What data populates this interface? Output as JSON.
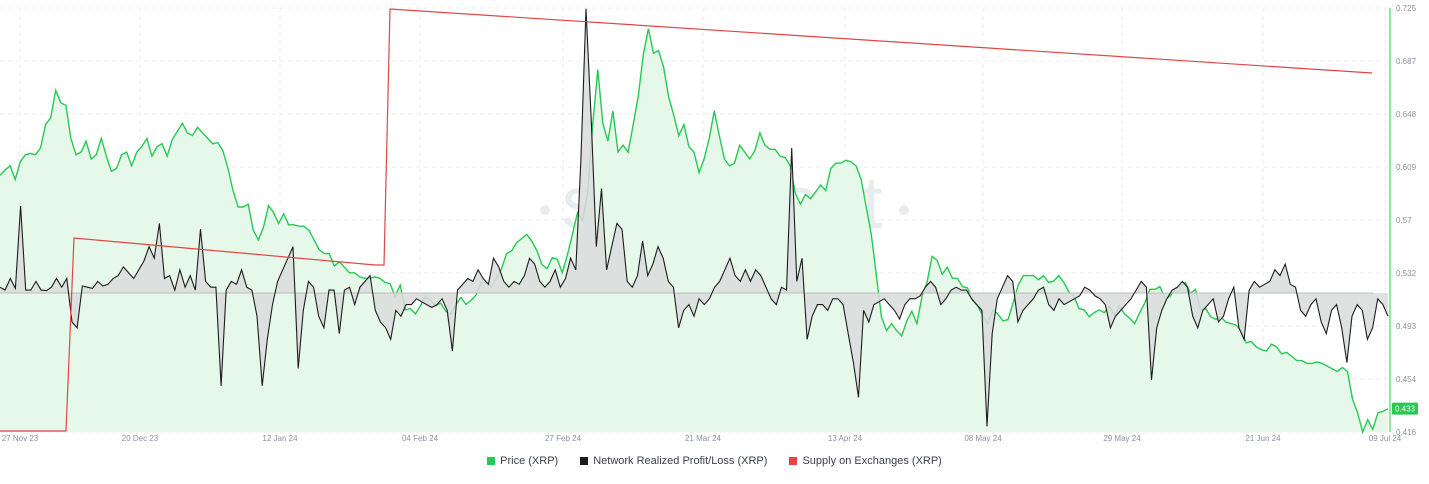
{
  "watermark": "santiment",
  "colors": {
    "price": "#26c953",
    "price_fill": "#e6f8ea",
    "profit_loss": "#1c1c1c",
    "profit_loss_fill": "#d9dcdc",
    "supply": "#e04646",
    "grid": "#ececec",
    "axis_text": "#8a919f"
  },
  "legend": [
    {
      "label": "Price (XRP)",
      "color": "#26c953"
    },
    {
      "label": "Network Realized Profit/Loss (XRP)",
      "color": "#1c1c1c"
    },
    {
      "label": "Supply on Exchanges (XRP)",
      "color": "#e04646"
    }
  ],
  "chart_data": {
    "type": "line",
    "x_tick_labels": [
      "27 Nov 23",
      "20 Dec 23",
      "12 Jan 24",
      "04 Feb 24",
      "27 Feb 24",
      "21 Mar 24",
      "13 Apr 24",
      "08 May 24",
      "29 May 24",
      "21 Jun 24",
      "09 Jul 24"
    ],
    "y_tick_labels": [
      "0.725",
      "0.687",
      "0.648",
      "0.609",
      "0.57",
      "0.532",
      "0.493",
      "0.454",
      "0.416"
    ],
    "ylim": [
      0.416,
      0.725
    ],
    "current_price_label": "0.433",
    "grid": true,
    "legend_position": "bottom-center",
    "series": [
      {
        "name": "Price (XRP)",
        "axis": "right",
        "values": [
          0.603,
          0.607,
          0.61,
          0.6,
          0.613,
          0.618,
          0.619,
          0.618,
          0.623,
          0.64,
          0.645,
          0.665,
          0.656,
          0.654,
          0.63,
          0.618,
          0.62,
          0.628,
          0.615,
          0.618,
          0.63,
          0.617,
          0.606,
          0.608,
          0.618,
          0.62,
          0.61,
          0.62,
          0.624,
          0.63,
          0.617,
          0.624,
          0.626,
          0.617,
          0.629,
          0.635,
          0.641,
          0.634,
          0.632,
          0.638,
          0.634,
          0.63,
          0.626,
          0.627,
          0.621,
          0.608,
          0.592,
          0.58,
          0.58,
          0.582,
          0.563,
          0.556,
          0.565,
          0.581,
          0.576,
          0.568,
          0.575,
          0.567,
          0.567,
          0.566,
          0.566,
          0.563,
          0.556,
          0.549,
          0.546,
          0.546,
          0.537,
          0.54,
          0.536,
          0.532,
          0.532,
          0.529,
          0.528,
          0.528,
          0.529,
          0.528,
          0.525,
          0.524,
          0.515,
          0.523,
          0.505,
          0.506,
          0.502,
          0.508,
          0.515,
          0.512,
          0.508,
          0.51,
          0.504,
          0.502,
          0.509,
          0.514,
          0.509,
          0.512,
          0.516,
          0.525,
          0.525,
          0.522,
          0.528,
          0.535,
          0.546,
          0.548,
          0.554,
          0.557,
          0.56,
          0.555,
          0.548,
          0.538,
          0.535,
          0.543,
          0.542,
          0.532,
          0.545,
          0.56,
          0.576,
          0.57,
          0.59,
          0.64,
          0.68,
          0.641,
          0.628,
          0.65,
          0.62,
          0.625,
          0.62,
          0.64,
          0.661,
          0.691,
          0.71,
          0.692,
          0.694,
          0.682,
          0.66,
          0.647,
          0.632,
          0.64,
          0.624,
          0.62,
          0.605,
          0.615,
          0.63,
          0.65,
          0.632,
          0.615,
          0.61,
          0.612,
          0.625,
          0.62,
          0.615,
          0.621,
          0.634,
          0.625,
          0.622,
          0.622,
          0.617,
          0.616,
          0.61,
          0.59,
          0.582,
          0.589,
          0.586,
          0.591,
          0.596,
          0.592,
          0.608,
          0.612,
          0.612,
          0.614,
          0.613,
          0.61,
          0.6,
          0.58,
          0.56,
          0.53,
          0.5,
          0.49,
          0.495,
          0.49,
          0.486,
          0.497,
          0.504,
          0.495,
          0.515,
          0.525,
          0.544,
          0.541,
          0.531,
          0.536,
          0.528,
          0.528,
          0.522,
          0.521,
          0.512,
          0.508,
          0.501,
          0.495,
          0.505,
          0.502,
          0.497,
          0.498,
          0.51,
          0.523,
          0.53,
          0.53,
          0.53,
          0.527,
          0.53,
          0.525,
          0.526,
          0.53,
          0.525,
          0.518,
          0.515,
          0.506,
          0.505,
          0.5,
          0.503,
          0.505,
          0.503,
          0.508,
          0.501,
          0.508,
          0.502,
          0.499,
          0.495,
          0.503,
          0.51,
          0.52,
          0.52,
          0.522,
          0.513,
          0.515,
          0.52,
          0.522,
          0.525,
          0.517,
          0.52,
          0.505,
          0.506,
          0.5,
          0.498,
          0.5,
          0.496,
          0.495,
          0.494,
          0.49,
          0.481,
          0.482,
          0.478,
          0.476,
          0.475,
          0.48,
          0.478,
          0.473,
          0.474,
          0.471,
          0.468,
          0.468,
          0.466,
          0.466,
          0.467,
          0.466,
          0.464,
          0.462,
          0.46,
          0.463,
          0.46,
          0.44,
          0.43,
          0.416,
          0.425,
          0.418,
          0.43,
          0.431,
          0.433
        ],
        "note": "price fill area to bottom"
      },
      {
        "name": "Network Realized Profit/Loss (XRP)",
        "axis": "left",
        "values": [
          10,
          5,
          25,
          8,
          150,
          5,
          5,
          20,
          5,
          4,
          10,
          25,
          10,
          25,
          -50,
          -60,
          12,
          10,
          8,
          20,
          12,
          15,
          25,
          30,
          45,
          35,
          25,
          40,
          55,
          80,
          60,
          120,
          25,
          30,
          5,
          40,
          10,
          30,
          5,
          110,
          20,
          10,
          10,
          -160,
          5,
          20,
          15,
          40,
          10,
          5,
          -40,
          -160,
          -80,
          -20,
          20,
          40,
          60,
          80,
          -130,
          -30,
          20,
          10,
          -40,
          -60,
          5,
          5,
          -70,
          5,
          10,
          -20,
          10,
          20,
          30,
          -30,
          -50,
          -60,
          -80,
          -30,
          -40,
          -20,
          -20,
          -10,
          -15,
          -20,
          -25,
          -20,
          -10,
          -30,
          -100,
          5,
          15,
          25,
          20,
          40,
          25,
          15,
          60,
          45,
          20,
          10,
          20,
          15,
          30,
          60,
          50,
          20,
          10,
          20,
          40,
          10,
          25,
          60,
          40,
          230,
          490,
          300,
          80,
          180,
          40,
          80,
          120,
          110,
          20,
          10,
          30,
          90,
          30,
          50,
          80,
          60,
          20,
          10,
          -60,
          -30,
          -20,
          -40,
          -10,
          -20,
          -10,
          10,
          20,
          40,
          60,
          30,
          20,
          40,
          20,
          40,
          30,
          10,
          -10,
          -20,
          10,
          5,
          250,
          20,
          60,
          -80,
          -40,
          -20,
          -20,
          -30,
          -10,
          -10,
          -20,
          -70,
          -120,
          -180,
          -30,
          -50,
          -20,
          -15,
          -10,
          -20,
          -30,
          -45,
          -20,
          -10,
          -10,
          -5,
          10,
          20,
          10,
          -20,
          -10,
          5,
          10,
          5,
          5,
          -10,
          -20,
          -30,
          -230,
          -70,
          -10,
          10,
          30,
          20,
          -50,
          -30,
          -20,
          -10,
          5,
          10,
          -20,
          -30,
          -10,
          -20,
          -15,
          -10,
          -5,
          10,
          5,
          -5,
          -10,
          -20,
          -60,
          -40,
          -30,
          -20,
          -10,
          5,
          20,
          10,
          -150,
          -60,
          -30,
          -10,
          5,
          10,
          20,
          10,
          -40,
          -60,
          -30,
          -20,
          -10,
          -50,
          -40,
          -10,
          10,
          -60,
          -80,
          5,
          20,
          10,
          15,
          20,
          40,
          30,
          50,
          15,
          10,
          -30,
          -40,
          -20,
          -10,
          -50,
          -70,
          -30,
          -20,
          -60,
          -120,
          -40,
          -20,
          -30,
          -80,
          -60,
          -10,
          -20,
          -40
        ],
        "note": "profit/loss line with fill to zero baseline"
      },
      {
        "name": "Supply on Exchanges (XRP)",
        "axis": "hidden",
        "values": "piecewise: low flat then step up at ~6 Dec 23, slow decline, step up at ~2 Feb 24, slow decline to 09 Jul 24"
      }
    ]
  }
}
